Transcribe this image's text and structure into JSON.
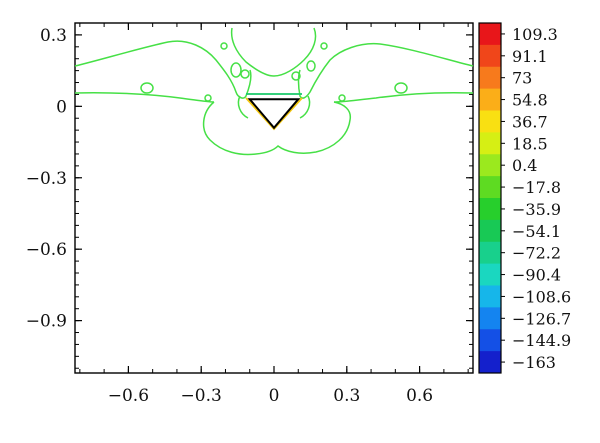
{
  "chart_data": {
    "type": "contour",
    "title": "",
    "xlabel": "",
    "ylabel": "",
    "xlim": [
      -0.82,
      0.82
    ],
    "ylim": [
      -1.12,
      0.35
    ],
    "x_ticks": [
      -0.6,
      -0.3,
      0,
      0.3,
      0.6
    ],
    "y_ticks": [
      0.3,
      0,
      -0.3,
      -0.6,
      -0.9
    ],
    "x_tick_labels": [
      "−0.6",
      "−0.3",
      "0",
      "0.3",
      "0.6"
    ],
    "y_tick_labels": [
      "0.3",
      "0",
      "−0.3",
      "−0.6",
      "−0.9"
    ],
    "grid": false,
    "obstacle": {
      "shape": "inverted-triangle",
      "vertices": [
        [
          -0.1,
          0.03
        ],
        [
          0.1,
          0.03
        ],
        [
          0.0,
          -0.09
        ]
      ]
    },
    "colorbar": {
      "levels": [
        "109.3",
        "91.1",
        "73",
        "54.8",
        "36.7",
        "18.5",
        "0.4",
        "−17.8",
        "−35.9",
        "−54.1",
        "−72.2",
        "−90.4",
        "−108.6",
        "−126.7",
        "−144.9",
        "−163"
      ],
      "colors": [
        "#e8161a",
        "#f0461a",
        "#f77a1c",
        "#fbae18",
        "#f9e012",
        "#d6ef14",
        "#9be91e",
        "#5edb22",
        "#27cf2c",
        "#18c955",
        "#18d08c",
        "#1ad7c0",
        "#16b6ea",
        "#1484f0",
        "#1450e6",
        "#1420cc"
      ]
    },
    "contours": [
      {
        "level": "0.4",
        "color": "#44e044",
        "description": "main outer contour: two wing lobes and a top-center lobe above the obstacle, plus a lower loop below it"
      },
      {
        "level": "0.4",
        "color": "#44e044",
        "description": "small isolated loops near the obstacle"
      },
      {
        "level": "36.7",
        "color": "#f4c810",
        "description": "thin contours hugging the obstacle"
      },
      {
        "level": "-35.9",
        "color": "#18c96a",
        "description": "contour along the obstacle's top edge"
      }
    ]
  }
}
